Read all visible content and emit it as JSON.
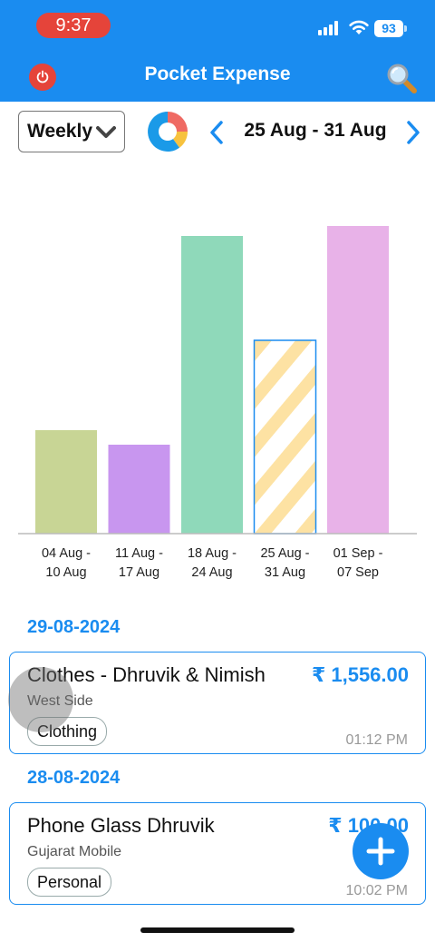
{
  "status_bar": {
    "time": "9:37",
    "battery": "93"
  },
  "header": {
    "title": "Pocket Expense"
  },
  "controls": {
    "period": "Weekly",
    "date_range": "25 Aug - 31 Aug"
  },
  "chart_data": {
    "type": "bar",
    "categories": [
      "04 Aug - 10 Aug",
      "11 Aug - 17 Aug",
      "18 Aug - 24 Aug",
      "25 Aug - 31 Aug",
      "01 Sep - 07 Sep"
    ],
    "category_lines": [
      [
        "04 Aug -",
        "10 Aug"
      ],
      [
        "11 Aug -",
        "17 Aug"
      ],
      [
        "18 Aug -",
        "24 Aug"
      ],
      [
        "25 Aug -",
        "31 Aug"
      ],
      [
        "01 Sep -",
        "07 Sep"
      ]
    ],
    "values": [
      114,
      98,
      328,
      213,
      339
    ],
    "ylim": [
      0,
      400
    ],
    "selected_index": 3,
    "colors": [
      "#c8d595",
      "#c896ef",
      "#8fd9ba",
      "#fde2a3",
      "#e8b2e8"
    ],
    "title": "",
    "xlabel": "",
    "ylabel": "",
    "grid": false
  },
  "transactions": [
    {
      "date": "29-08-2024",
      "title": "Clothes - Dhruvik & Nimish",
      "amount": "₹ 1,556.00",
      "place": "West Side",
      "category": "Clothing",
      "time": "01:12 PM"
    },
    {
      "date": "28-08-2024",
      "title": "Phone Glass Dhruvik",
      "amount": "₹ 100.00",
      "place": "Gujarat Mobile",
      "category": "Personal",
      "time": "10:02 PM"
    }
  ],
  "icons": {
    "power": "power-icon",
    "search": "search-icon",
    "pie": "pie-chart-icon",
    "prev": "chevron-left-icon",
    "next": "chevron-right-icon",
    "add": "plus-icon"
  },
  "accent": "#1a8cf0"
}
